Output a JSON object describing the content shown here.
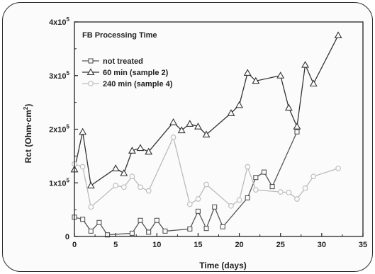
{
  "chart_data": {
    "type": "line",
    "title": "FB Processing Time",
    "xlabel": "Time (days)",
    "ylabel": "Rct (Ohm·cm²)",
    "xlim": [
      0,
      35
    ],
    "ylim": [
      0,
      400000
    ],
    "x_ticks": [
      "0",
      "5",
      "10",
      "15",
      "20",
      "25",
      "30",
      "35"
    ],
    "y_ticks": [
      {
        "value": 0,
        "mantissa": "0",
        "exp": ""
      },
      {
        "value": 100000,
        "mantissa": "1x10",
        "exp": "5"
      },
      {
        "value": 200000,
        "mantissa": "2x10",
        "exp": "5"
      },
      {
        "value": 300000,
        "mantissa": "3x10",
        "exp": "5"
      },
      {
        "value": 400000,
        "mantissa": "4x10",
        "exp": "5"
      }
    ],
    "legend_position": "top-left",
    "series": [
      {
        "name": "not treated",
        "marker": "square",
        "color": "#555555",
        "x": [
          0,
          1,
          2,
          3,
          4,
          7,
          8,
          9,
          10,
          11,
          14,
          15,
          16,
          17,
          18,
          21,
          22,
          23,
          24,
          27
        ],
        "y": [
          36000,
          32000,
          10000,
          26000,
          3000,
          6000,
          30000,
          8000,
          30000,
          10000,
          14000,
          47000,
          15000,
          55000,
          18000,
          72000,
          110000,
          120000,
          93000,
          195000
        ]
      },
      {
        "name": "60 min  (sample 2)",
        "marker": "triangle",
        "color": "#333333",
        "x": [
          0,
          1,
          2,
          5,
          6,
          7,
          8,
          9,
          12,
          13,
          14,
          15,
          16,
          19,
          20,
          21,
          22,
          25,
          26,
          27,
          28,
          29,
          32
        ],
        "y": [
          125000,
          195000,
          95000,
          127000,
          118000,
          160000,
          165000,
          158000,
          213000,
          198000,
          210000,
          205000,
          190000,
          230000,
          245000,
          305000,
          290000,
          300000,
          240000,
          205000,
          320000,
          285000,
          375000
        ]
      },
      {
        "name": "240 min (sample 4)",
        "marker": "circle",
        "color": "#bbbbbb",
        "x": [
          0,
          1,
          2,
          5,
          6,
          7,
          8,
          9,
          12,
          14,
          15,
          16,
          19,
          20,
          21,
          22,
          25,
          26,
          27,
          28,
          29,
          32
        ],
        "y": [
          135000,
          130000,
          55000,
          95000,
          92000,
          112000,
          92000,
          85000,
          185000,
          60000,
          70000,
          97000,
          57000,
          68000,
          130000,
          87000,
          83000,
          82000,
          70000,
          90000,
          112000,
          127000
        ]
      }
    ]
  }
}
